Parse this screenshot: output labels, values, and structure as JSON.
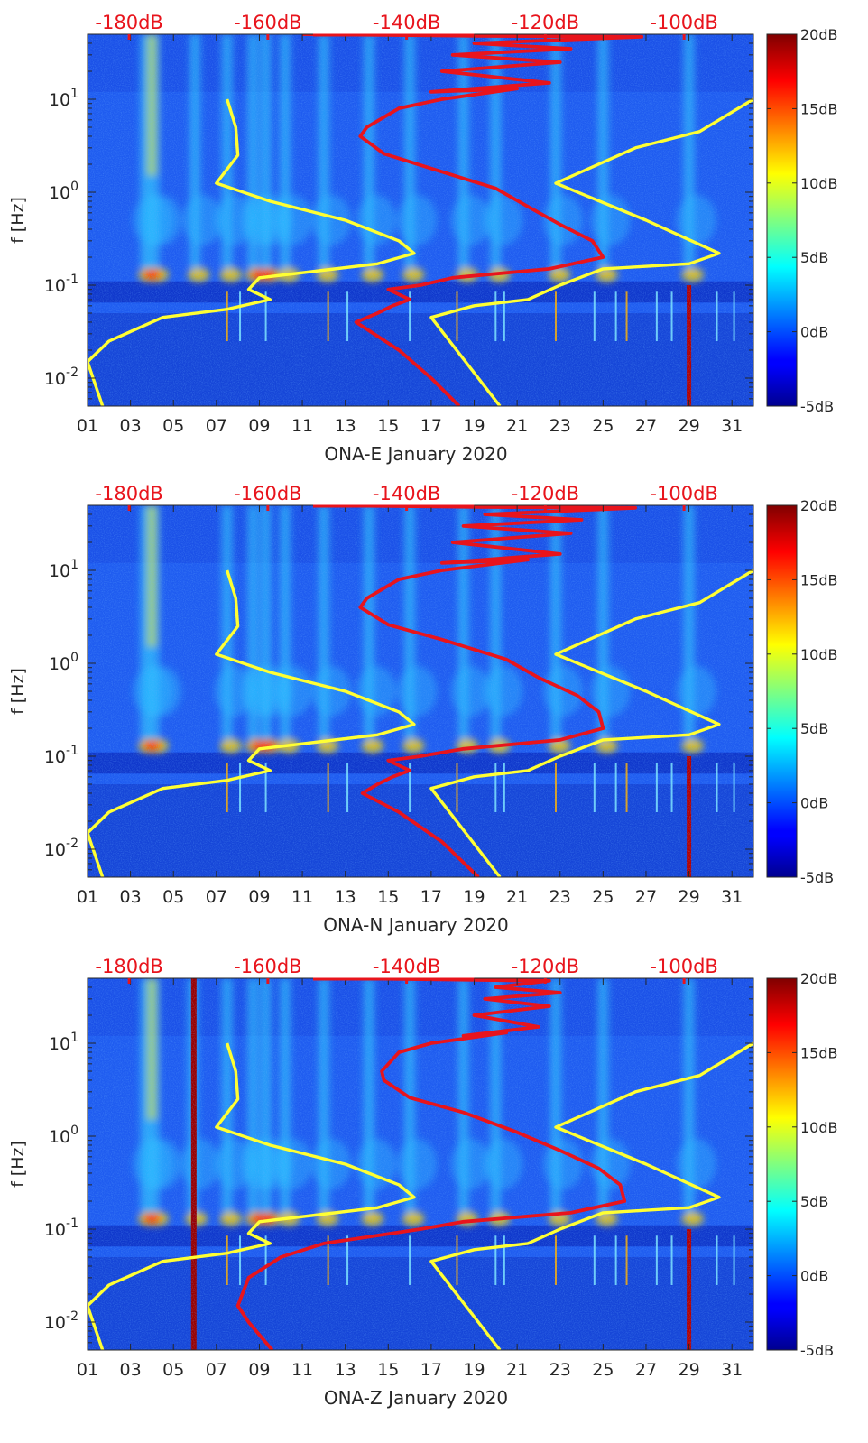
{
  "colors": {
    "psd_model_curve": "#ffff33",
    "probability_curve": "#e8141c",
    "top_axis_text": "#e8141c"
  },
  "colormap": "jet",
  "chart_data": [
    {
      "type": "heatmap",
      "title": "",
      "xlabel": "ONA-E January 2020",
      "ylabel": "f [Hz]",
      "x_ticks": [
        "01",
        "03",
        "05",
        "07",
        "09",
        "11",
        "13",
        "15",
        "17",
        "19",
        "21",
        "23",
        "25",
        "27",
        "29",
        "31"
      ],
      "xlim": [
        1,
        32
      ],
      "y_scale": "log",
      "ylim": [
        0.005,
        50
      ],
      "y_ticks": [
        "10-2",
        "100",
        "101",
        "10-1"
      ],
      "colorbar": {
        "range": [
          -5,
          20
        ],
        "ticks": [
          "20dB",
          "15dB",
          "10dB",
          "5dB",
          "0dB",
          "-5dB"
        ]
      },
      "top_axis": {
        "ticks": [
          "-180dB",
          "-160dB",
          "-140dB",
          "-120dB",
          "-100dB"
        ],
        "values": [
          -180,
          -160,
          -140,
          -120,
          -100
        ],
        "range": [
          -186,
          -90
        ]
      },
      "yellow_curve": [
        [
          7.5,
          10
        ],
        [
          7.9,
          5
        ],
        [
          8.0,
          2.5
        ],
        [
          7.0,
          1.25
        ],
        [
          9.5,
          0.8
        ],
        [
          13,
          0.5
        ],
        [
          15.5,
          0.3
        ],
        [
          16.2,
          0.22
        ],
        [
          14.5,
          0.17
        ],
        [
          9,
          0.12
        ],
        [
          8.5,
          0.09
        ],
        [
          9.5,
          0.07
        ],
        [
          7.5,
          0.055
        ],
        [
          4.5,
          0.045
        ],
        [
          2,
          0.025
        ],
        [
          1,
          0.015
        ],
        [
          1.7,
          0.005
        ]
      ],
      "yellow_curve_2": [
        [
          32,
          10
        ],
        [
          29.5,
          4.5
        ],
        [
          26.5,
          3
        ],
        [
          22.8,
          1.25
        ],
        [
          27,
          0.5
        ],
        [
          30.4,
          0.22
        ],
        [
          29,
          0.17
        ],
        [
          25,
          0.15
        ],
        [
          23,
          0.1
        ],
        [
          21.5,
          0.07
        ],
        [
          19,
          0.06
        ],
        [
          17,
          0.045
        ],
        [
          20.2,
          0.005
        ]
      ],
      "red_curve": [
        [
          11,
          50
        ],
        [
          19,
          48
        ],
        [
          26.8,
          47
        ],
        [
          19,
          40
        ],
        [
          23.5,
          35
        ],
        [
          18,
          30
        ],
        [
          23,
          25
        ],
        [
          17.5,
          20
        ],
        [
          22.5,
          15
        ],
        [
          17,
          12
        ],
        [
          21,
          13
        ],
        [
          17.5,
          10
        ],
        [
          15.5,
          8
        ],
        [
          14,
          5
        ],
        [
          13.7,
          4
        ],
        [
          14.8,
          2.6
        ],
        [
          17,
          1.8
        ],
        [
          20,
          1.1
        ],
        [
          21.5,
          0.7
        ],
        [
          23,
          0.45
        ],
        [
          24.5,
          0.3
        ],
        [
          25,
          0.2
        ],
        [
          22.5,
          0.15
        ],
        [
          18,
          0.12
        ],
        [
          16.5,
          0.1
        ],
        [
          15,
          0.09
        ],
        [
          16,
          0.07
        ],
        [
          15.2,
          0.06
        ],
        [
          14.5,
          0.05
        ],
        [
          13.5,
          0.04
        ],
        [
          15.5,
          0.02
        ],
        [
          17,
          0.01
        ],
        [
          18.3,
          0.005
        ]
      ],
      "bright_columns": [
        3.7,
        4.1,
        6.0,
        7.5,
        8.7,
        9.3,
        10.2,
        12.0,
        14.1,
        16.0,
        18.5,
        20.0,
        22.8,
        25.0,
        29.0
      ]
    },
    {
      "type": "heatmap",
      "title": "",
      "xlabel": "ONA-N January 2020",
      "ylabel": "f [Hz]",
      "x_ticks": [
        "01",
        "03",
        "05",
        "07",
        "09",
        "11",
        "13",
        "15",
        "17",
        "19",
        "21",
        "23",
        "25",
        "27",
        "29",
        "31"
      ],
      "xlim": [
        1,
        32
      ],
      "y_scale": "log",
      "ylim": [
        0.005,
        50
      ],
      "y_ticks": [
        "10-2",
        "100",
        "101",
        "10-1"
      ],
      "colorbar": {
        "range": [
          -5,
          20
        ],
        "ticks": [
          "20dB",
          "15dB",
          "10dB",
          "5dB",
          "0dB",
          "-5dB"
        ]
      },
      "top_axis": {
        "ticks": [
          "-180dB",
          "-160dB",
          "-140dB",
          "-120dB",
          "-100dB"
        ],
        "values": [
          -180,
          -160,
          -140,
          -120,
          -100
        ],
        "range": [
          -186,
          -90
        ]
      },
      "yellow_curve": [
        [
          7.5,
          10
        ],
        [
          7.9,
          5
        ],
        [
          8.0,
          2.5
        ],
        [
          7.0,
          1.25
        ],
        [
          9.5,
          0.8
        ],
        [
          13,
          0.5
        ],
        [
          15.5,
          0.3
        ],
        [
          16.2,
          0.22
        ],
        [
          14.5,
          0.17
        ],
        [
          9,
          0.12
        ],
        [
          8.5,
          0.09
        ],
        [
          9.5,
          0.07
        ],
        [
          7.5,
          0.055
        ],
        [
          4.5,
          0.045
        ],
        [
          2,
          0.025
        ],
        [
          1,
          0.015
        ],
        [
          1.7,
          0.005
        ]
      ],
      "yellow_curve_2": [
        [
          32,
          10
        ],
        [
          29.5,
          4.5
        ],
        [
          26.5,
          3
        ],
        [
          22.8,
          1.25
        ],
        [
          27,
          0.5
        ],
        [
          30.4,
          0.22
        ],
        [
          29,
          0.17
        ],
        [
          25,
          0.15
        ],
        [
          23,
          0.1
        ],
        [
          21.5,
          0.07
        ],
        [
          19,
          0.06
        ],
        [
          17,
          0.045
        ],
        [
          20.2,
          0.005
        ]
      ],
      "red_curve": [
        [
          11.5,
          50
        ],
        [
          19,
          48
        ],
        [
          26.5,
          47
        ],
        [
          19.5,
          40
        ],
        [
          24,
          35
        ],
        [
          18.5,
          30
        ],
        [
          23.5,
          25
        ],
        [
          18,
          20
        ],
        [
          23,
          15
        ],
        [
          17.5,
          12
        ],
        [
          21.5,
          13
        ],
        [
          17.5,
          10
        ],
        [
          15.5,
          8
        ],
        [
          14,
          5
        ],
        [
          13.7,
          4
        ],
        [
          15,
          2.6
        ],
        [
          17.5,
          1.8
        ],
        [
          20.5,
          1.1
        ],
        [
          22,
          0.7
        ],
        [
          23.8,
          0.45
        ],
        [
          24.8,
          0.3
        ],
        [
          25,
          0.2
        ],
        [
          23,
          0.15
        ],
        [
          18.5,
          0.12
        ],
        [
          16.5,
          0.1
        ],
        [
          15,
          0.09
        ],
        [
          16,
          0.07
        ],
        [
          15.2,
          0.06
        ],
        [
          14.5,
          0.05
        ],
        [
          13.8,
          0.04
        ],
        [
          15.5,
          0.025
        ],
        [
          17.5,
          0.012
        ],
        [
          19.2,
          0.005
        ]
      ],
      "bright_columns": [
        3.7,
        4.1,
        7.5,
        8.7,
        9.3,
        10.2,
        12.0,
        14.1,
        16.0,
        18.5,
        20.0,
        22.8,
        25.0,
        29.0
      ]
    },
    {
      "type": "heatmap",
      "title": "",
      "xlabel": "ONA-Z January 2020",
      "ylabel": "f [Hz]",
      "x_ticks": [
        "01",
        "03",
        "05",
        "07",
        "09",
        "11",
        "13",
        "15",
        "17",
        "19",
        "21",
        "23",
        "25",
        "27",
        "29",
        "31"
      ],
      "xlim": [
        1,
        32
      ],
      "y_scale": "log",
      "ylim": [
        0.005,
        50
      ],
      "y_ticks": [
        "10-2",
        "100",
        "101",
        "10-1"
      ],
      "colorbar": {
        "range": [
          -5,
          20
        ],
        "ticks": [
          "20dB",
          "15dB",
          "10dB",
          "5dB",
          "0dB",
          "-5dB"
        ]
      },
      "top_axis": {
        "ticks": [
          "-180dB",
          "-160dB",
          "-140dB",
          "-120dB",
          "-100dB"
        ],
        "values": [
          -180,
          -160,
          -140,
          -120,
          -100
        ],
        "range": [
          -186,
          -90
        ]
      },
      "yellow_curve": [
        [
          7.5,
          10
        ],
        [
          7.9,
          5
        ],
        [
          8.0,
          2.5
        ],
        [
          7.0,
          1.25
        ],
        [
          9.5,
          0.8
        ],
        [
          13,
          0.5
        ],
        [
          15.5,
          0.3
        ],
        [
          16.2,
          0.22
        ],
        [
          14.5,
          0.17
        ],
        [
          9,
          0.12
        ],
        [
          8.5,
          0.09
        ],
        [
          9.5,
          0.07
        ],
        [
          7.5,
          0.055
        ],
        [
          4.5,
          0.045
        ],
        [
          2,
          0.025
        ],
        [
          1,
          0.015
        ],
        [
          1.7,
          0.005
        ]
      ],
      "yellow_curve_2": [
        [
          32,
          10
        ],
        [
          29.5,
          4.5
        ],
        [
          26.5,
          3
        ],
        [
          22.8,
          1.25
        ],
        [
          27,
          0.5
        ],
        [
          30.4,
          0.22
        ],
        [
          29,
          0.17
        ],
        [
          25,
          0.15
        ],
        [
          23,
          0.1
        ],
        [
          21.5,
          0.07
        ],
        [
          19,
          0.06
        ],
        [
          17,
          0.045
        ],
        [
          20.2,
          0.005
        ]
      ],
      "red_curve": [
        [
          12.5,
          50
        ],
        [
          19,
          48
        ],
        [
          22.5,
          47
        ],
        [
          20,
          40
        ],
        [
          23,
          35
        ],
        [
          19.5,
          30
        ],
        [
          22.5,
          25
        ],
        [
          19,
          20
        ],
        [
          22,
          15
        ],
        [
          18.5,
          12
        ],
        [
          20.5,
          13
        ],
        [
          17,
          10
        ],
        [
          15.5,
          8
        ],
        [
          14.7,
          5
        ],
        [
          14.8,
          4
        ],
        [
          16,
          2.6
        ],
        [
          18.5,
          1.8
        ],
        [
          21,
          1.1
        ],
        [
          23,
          0.7
        ],
        [
          24.8,
          0.45
        ],
        [
          25.8,
          0.3
        ],
        [
          26,
          0.2
        ],
        [
          23.5,
          0.15
        ],
        [
          18.5,
          0.12
        ],
        [
          16.5,
          0.1
        ],
        [
          12,
          0.07
        ],
        [
          10,
          0.05
        ],
        [
          8.5,
          0.03
        ],
        [
          8,
          0.015
        ],
        [
          8.5,
          0.01
        ],
        [
          9.6,
          0.005
        ]
      ],
      "bright_columns": [
        3.7,
        4.1,
        5.9,
        7.5,
        8.7,
        9.3,
        10.2,
        12.0,
        14.1,
        16.0,
        18.5,
        20.0,
        22.8,
        25.0,
        29.0
      ]
    }
  ]
}
